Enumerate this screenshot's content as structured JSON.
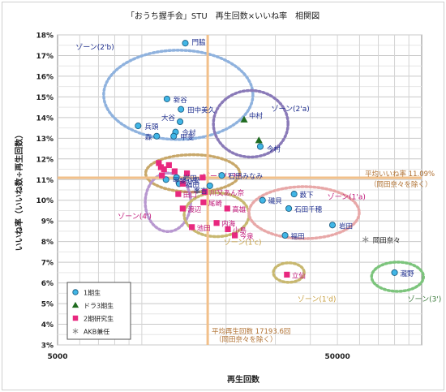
{
  "chart_data": {
    "type": "scatter",
    "title": "「おうち握手会」STU　再生回数×いいね率　相関図",
    "xlabel": "再生回数",
    "ylabel": "いいね率（いいね数÷再生回数）",
    "x_scale": "log",
    "xlim": [
      5000,
      100000
    ],
    "ylim": [
      3,
      18
    ],
    "x_tick_labels": [
      "5000",
      "50000"
    ],
    "x_tick_values": [
      5000,
      50000
    ],
    "y_tick_labels": [
      "3%",
      "4%",
      "5%",
      "6%",
      "7%",
      "8%",
      "9%",
      "10%",
      "11%",
      "12%",
      "13%",
      "14%",
      "15%",
      "16%",
      "17%",
      "18%"
    ],
    "y_tick_values": [
      3,
      4,
      5,
      6,
      7,
      8,
      9,
      10,
      11,
      12,
      13,
      14,
      15,
      16,
      17,
      18
    ],
    "grid": true,
    "legend_position": "bottom-left",
    "colors": {
      "gen1": "#41b6e6",
      "draft3": "#1f6b1f",
      "gen2": "#e8287f",
      "akb": "#888888",
      "label_blue": "#1f2f8f",
      "label_pink": "#c0187a",
      "avg_line": "#f2c08a"
    },
    "series": [
      {
        "name": "1期生",
        "marker": "circle",
        "points": [
          {
            "label": "門脇",
            "x": 14300,
            "y": 17.6
          },
          {
            "label": "新谷",
            "x": 12300,
            "y": 14.9
          },
          {
            "label": "田中美久",
            "x": 13800,
            "y": 14.4
          },
          {
            "label": "大谷",
            "x": 13700,
            "y": 13.8
          },
          {
            "label": "兵頭",
            "x": 9700,
            "y": 13.6
          },
          {
            "label": "今村",
            "x": 13200,
            "y": 13.3
          },
          {
            "label": "甲斐",
            "x": 13000,
            "y": 13.1
          },
          {
            "label": "森",
            "x": 11300,
            "y": 13.1
          },
          {
            "label": "今村",
            "x": 26500,
            "y": 12.6
          },
          {
            "label": "石田みなみ",
            "x": 19300,
            "y": 11.2
          },
          {
            "label": "岩田",
            "x": 13300,
            "y": 11.1
          },
          {
            "label": "甲斐心愛",
            "x": 12200,
            "y": 11.0
          },
          {
            "label": "福田",
            "x": 13600,
            "y": 10.8
          },
          {
            "label": "峯吉",
            "x": 17500,
            "y": 10.7
          },
          {
            "label": "磯貝",
            "x": 27000,
            "y": 10.0
          },
          {
            "label": "薮下",
            "x": 35000,
            "y": 10.3
          },
          {
            "label": "石田千穂",
            "x": 33500,
            "y": 9.6
          },
          {
            "label": "岩田",
            "x": 48000,
            "y": 8.8
          },
          {
            "label": "福田",
            "x": 32500,
            "y": 8.3
          },
          {
            "label": "瀧野",
            "x": 80000,
            "y": 6.5
          }
        ]
      },
      {
        "name": "ドラ3期生",
        "marker": "triangle",
        "points": [
          {
            "label": "中村",
            "x": 23200,
            "y": 13.9
          },
          {
            "label": "",
            "x": 26200,
            "y": 12.9
          }
        ]
      },
      {
        "name": "2期研究生",
        "marker": "square",
        "points": [
          {
            "label": "",
            "x": 11500,
            "y": 11.8
          },
          {
            "label": "",
            "x": 11700,
            "y": 11.6
          },
          {
            "label": "",
            "x": 12000,
            "y": 11.5
          },
          {
            "label": "",
            "x": 12500,
            "y": 11.7
          },
          {
            "label": "",
            "x": 11800,
            "y": 11.2
          },
          {
            "label": "",
            "x": 13100,
            "y": 11.4
          },
          {
            "label": "",
            "x": 14500,
            "y": 11.3
          },
          {
            "label": "",
            "x": 16500,
            "y": 11.1
          },
          {
            "label": "",
            "x": 14000,
            "y": 10.8
          },
          {
            "label": "田口",
            "x": 13500,
            "y": 10.3
          },
          {
            "label": "川又あん奈",
            "x": 16800,
            "y": 10.4
          },
          {
            "label": "渡辺",
            "x": 14000,
            "y": 9.6
          },
          {
            "label": "尾崎",
            "x": 16600,
            "y": 9.9
          },
          {
            "label": "高雄",
            "x": 20200,
            "y": 9.6
          },
          {
            "label": "池田",
            "x": 15100,
            "y": 8.7
          },
          {
            "label": "内海",
            "x": 18500,
            "y": 8.9
          },
          {
            "label": "小島",
            "x": 20300,
            "y": 8.6
          },
          {
            "label": "今泉",
            "x": 21500,
            "y": 8.3
          },
          {
            "label": "立仙",
            "x": 33000,
            "y": 6.4
          }
        ]
      },
      {
        "name": "AKB兼任",
        "marker": "asterisk",
        "points": [
          {
            "label": "岡田奈々",
            "x": 63000,
            "y": 8.1
          }
        ]
      }
    ],
    "reference_lines": [
      {
        "axis": "y",
        "value": 11.09,
        "label": "平均いいね率 11.09%",
        "sublabel": "（岡田奈々を除く）"
      },
      {
        "axis": "x",
        "value": 17193.6,
        "label": "平均再生回数 17193.6回",
        "sublabel": "（岡田奈々を除く）"
      }
    ],
    "zones": [
      {
        "label": "ゾーン(2'b)"
      },
      {
        "label": "ゾーン(2'a)"
      },
      {
        "label": "ゾーン(1'b)"
      },
      {
        "label": "ゾーン(4')"
      },
      {
        "label": "ゾーン(1'c)"
      },
      {
        "label": "ゾーン(1'a)"
      },
      {
        "label": "ゾーン(1'd)"
      },
      {
        "label": "ゾーン(3')"
      }
    ]
  }
}
